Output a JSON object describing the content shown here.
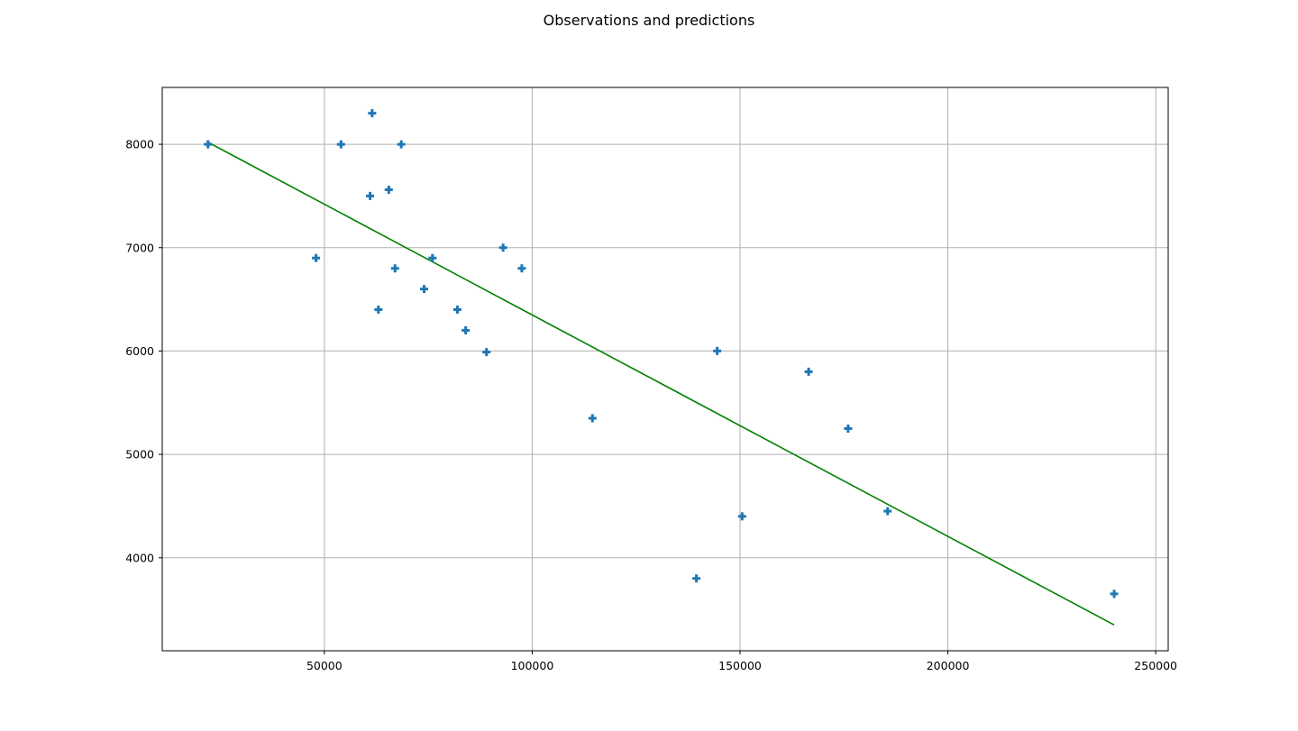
{
  "chart_data": {
    "type": "scatter",
    "title": "Observations and predictions",
    "xlabel": "",
    "ylabel": "",
    "xlim": [
      11000,
      253000
    ],
    "ylim": [
      3100,
      8550
    ],
    "xticks": [
      50000,
      100000,
      150000,
      200000,
      250000
    ],
    "yticks": [
      4000,
      5000,
      6000,
      7000,
      8000
    ],
    "grid": true,
    "series": [
      {
        "kind": "scatter",
        "marker": "plus",
        "color": "#1f77b4",
        "points": [
          [
            22000,
            8000
          ],
          [
            48000,
            6900
          ],
          [
            54000,
            8000
          ],
          [
            61000,
            7500
          ],
          [
            61500,
            8300
          ],
          [
            63000,
            6400
          ],
          [
            65500,
            7560
          ],
          [
            67000,
            6800
          ],
          [
            68500,
            8000
          ],
          [
            74000,
            6600
          ],
          [
            76000,
            6900
          ],
          [
            82000,
            6400
          ],
          [
            84000,
            6200
          ],
          [
            89000,
            5990
          ],
          [
            93000,
            7000
          ],
          [
            97500,
            6800
          ],
          [
            114500,
            5350
          ],
          [
            139500,
            3800
          ],
          [
            144500,
            6000
          ],
          [
            150500,
            4400
          ],
          [
            166500,
            5800
          ],
          [
            176000,
            5250
          ],
          [
            185500,
            4450
          ],
          [
            240000,
            3650
          ]
        ]
      },
      {
        "kind": "line",
        "color": "#008000",
        "points": [
          [
            22000,
            8020
          ],
          [
            240000,
            3350
          ]
        ]
      }
    ]
  }
}
